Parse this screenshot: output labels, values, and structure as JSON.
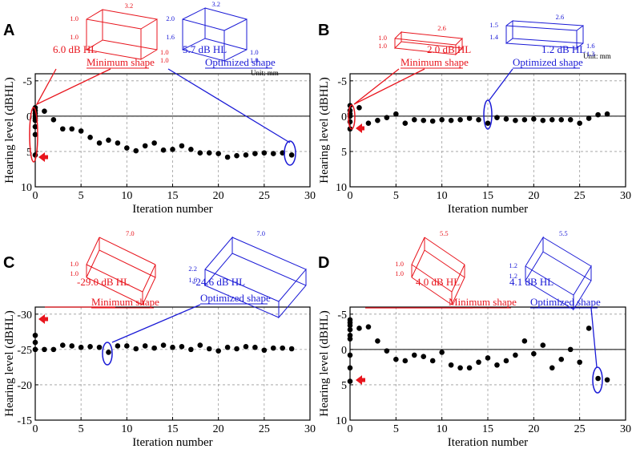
{
  "chart_data": [
    {
      "type": "scatter",
      "panel_label": "A",
      "xlabel": "Iteration number",
      "ylabel": "Hearing level (dBHL)",
      "xlim": [
        0,
        30
      ],
      "ylim": [
        10,
        -6
      ],
      "xticks": [
        "0",
        "5",
        "10",
        "15",
        "20",
        "25",
        "30"
      ],
      "yticks": [
        {
          "v": -5,
          "label": "-5"
        },
        {
          "v": 0,
          "label": "0"
        },
        {
          "v": 5,
          "label": "5"
        },
        {
          "v": 10,
          "label": "10"
        }
      ],
      "x": [
        0,
        0,
        0,
        0,
        0,
        0,
        0,
        0,
        0,
        1,
        2,
        3,
        4,
        5,
        6,
        7,
        8,
        9,
        10,
        11,
        12,
        13,
        14,
        15,
        16,
        17,
        18,
        19,
        20,
        21,
        22,
        23,
        24,
        25,
        26,
        27,
        28
      ],
      "y": [
        -1.2,
        -0.8,
        -0.4,
        0,
        0.3,
        0.6,
        1.5,
        2.6,
        5.5,
        -0.7,
        0.5,
        1.8,
        1.8,
        2.1,
        3,
        3.8,
        3.4,
        3.8,
        4.5,
        4.9,
        4.2,
        3.8,
        4.8,
        4.7,
        4.2,
        4.7,
        5.2,
        5.2,
        5.3,
        5.8,
        5.6,
        5.5,
        5.3,
        5.2,
        5.3,
        5.2,
        5.5
      ],
      "minimum_shape": {
        "label": "Minimum shape",
        "value": "6.0 dB HL",
        "dims": [
          "1.0",
          "1.0",
          "3.2",
          "1.0",
          "1.0"
        ]
      },
      "optimized_shape": {
        "label": "Optimized shape",
        "value": "5.7 dB HL",
        "dims": [
          "2.0",
          "1.6",
          "3.2",
          "1.0",
          "1.0"
        ],
        "unit": "Unit: mm"
      }
    },
    {
      "type": "scatter",
      "panel_label": "B",
      "xlabel": "Iteration number",
      "ylabel": "Hearing level (dBHL)",
      "xlim": [
        0,
        30
      ],
      "ylim": [
        10,
        -6
      ],
      "xticks": [
        "0",
        "5",
        "10",
        "15",
        "20",
        "25",
        "30"
      ],
      "yticks": [
        {
          "v": -5,
          "label": "-5"
        },
        {
          "v": 0,
          "label": "0"
        },
        {
          "v": 5,
          "label": "5"
        },
        {
          "v": 10,
          "label": "10"
        }
      ],
      "x": [
        0,
        0,
        0,
        0,
        0,
        0,
        1,
        2,
        3,
        4,
        5,
        6,
        7,
        8,
        9,
        10,
        11,
        12,
        13,
        14,
        15,
        16,
        17,
        18,
        19,
        20,
        21,
        22,
        23,
        24,
        25,
        26,
        27,
        28
      ],
      "y": [
        -1.5,
        -0.8,
        -0.3,
        0,
        0.8,
        1.8,
        -1.2,
        1,
        0.6,
        0.2,
        -0.3,
        1,
        0.5,
        0.6,
        0.7,
        0.5,
        0.6,
        0.5,
        0.3,
        0.5,
        1,
        0.2,
        0.4,
        0.6,
        0.5,
        0.4,
        0.6,
        0.5,
        0.5,
        0.5,
        1,
        0.3,
        -0.2,
        -0.3
      ],
      "minimum_shape": {
        "label": "Minimum shape",
        "value": "2.0 dB HL",
        "dims": [
          "1.0",
          "1.0",
          "2.6"
        ]
      },
      "optimized_shape": {
        "label": "Optimized shape",
        "value": "1.2 dB HL",
        "dims": [
          "1.5",
          "1.4",
          "2.6",
          "1.6",
          "1.3"
        ],
        "unit": "Unit: mm"
      }
    },
    {
      "type": "scatter",
      "panel_label": "C",
      "xlabel": "Iteration number",
      "ylabel": "Hearing level (dBHL)",
      "xlim": [
        0,
        30
      ],
      "ylim": [
        -15,
        -31
      ],
      "xticks": [
        "0",
        "5",
        "10",
        "15",
        "20",
        "25",
        "30"
      ],
      "yticks": [
        {
          "v": -30,
          "label": "-30"
        },
        {
          "v": -25,
          "label": "-25"
        },
        {
          "v": -20,
          "label": "-20"
        },
        {
          "v": -15,
          "label": "-15"
        }
      ],
      "x": [
        0,
        0,
        0,
        1,
        2,
        3,
        4,
        5,
        6,
        7,
        8,
        9,
        10,
        11,
        12,
        13,
        14,
        15,
        16,
        17,
        18,
        19,
        20,
        21,
        22,
        23,
        24,
        25,
        26,
        27,
        28
      ],
      "y": [
        -27,
        -26,
        -25,
        -25,
        -25,
        -25.6,
        -25.5,
        -25.3,
        -25.4,
        -25.3,
        -24.6,
        -25.5,
        -25.5,
        -25.1,
        -25.5,
        -25.2,
        -25.6,
        -25.3,
        -25.4,
        -25,
        -25.6,
        -25.1,
        -24.8,
        -25.3,
        -25.1,
        -25.4,
        -25.3,
        -24.9,
        -25.2,
        -25.2,
        -25.1
      ],
      "minimum_shape": {
        "label": "Minimum shape",
        "value": "-29.0 dB HL",
        "dims": [
          "1.0",
          "1.0",
          "7.0"
        ]
      },
      "optimized_shape": {
        "label": "Optimized shape",
        "value": "-24.6 dB HL",
        "dims": [
          "2.2",
          "1.6",
          "7.0"
        ]
      }
    },
    {
      "type": "scatter",
      "panel_label": "D",
      "xlabel": "Iteration number",
      "ylabel": "Hearing level (dBHL)",
      "xlim": [
        0,
        30
      ],
      "ylim": [
        10,
        -6
      ],
      "xticks": [
        "0",
        "5",
        "10",
        "15",
        "20",
        "25",
        "30"
      ],
      "yticks": [
        {
          "v": -5,
          "label": "-5"
        },
        {
          "v": 0,
          "label": "0"
        },
        {
          "v": 5,
          "label": "5"
        },
        {
          "v": 10,
          "label": "10"
        }
      ],
      "x": [
        0,
        0,
        0,
        0,
        0,
        0,
        0,
        0,
        0,
        1,
        2,
        3,
        4,
        5,
        6,
        7,
        8,
        9,
        10,
        11,
        12,
        13,
        14,
        15,
        16,
        17,
        18,
        19,
        20,
        21,
        22,
        23,
        24,
        25,
        26,
        27,
        28
      ],
      "y": [
        -4.2,
        -3.8,
        -3.4,
        -2.8,
        -2,
        -1.5,
        0.8,
        2.6,
        4.5,
        -3,
        -3.2,
        -1.2,
        0.2,
        1.4,
        1.6,
        0.8,
        1,
        1.6,
        0.4,
        2.2,
        2.6,
        2.6,
        1.8,
        1.2,
        2.2,
        1.6,
        0.8,
        -1.2,
        0.6,
        -0.6,
        2.6,
        1.4,
        0,
        1.8,
        -3,
        4.1,
        4.3
      ],
      "minimum_shape": {
        "label": "Minimum shape",
        "value": "4.0 dB HL",
        "dims": [
          "1.0",
          "1.0",
          "5.5"
        ]
      },
      "optimized_shape": {
        "label": "Optimized shape",
        "value": "4.1 dB HL",
        "dims": [
          "1.2",
          "1.2",
          "5.5"
        ]
      }
    }
  ]
}
